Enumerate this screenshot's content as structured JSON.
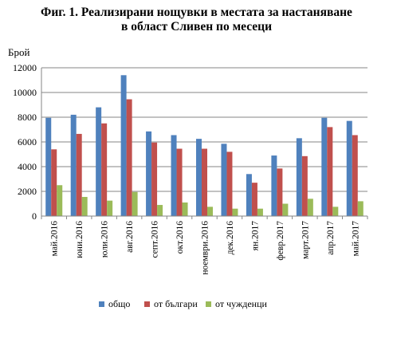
{
  "chart_data": {
    "type": "bar",
    "title": [
      "Фиг. 1. Реализирани нощувки в местата за настаняване",
      "в област Сливен по месеци"
    ],
    "ylabel": "Брой",
    "xlabel": "",
    "ylim": [
      0,
      12000
    ],
    "yticks": [
      0,
      2000,
      4000,
      6000,
      8000,
      10000,
      12000
    ],
    "grid": true,
    "legend_position": "bottom",
    "categories": [
      "май.2016",
      "юни.2016",
      "юли.2016",
      "авг.2016",
      "септ.2016",
      "окт.2016",
      "ноември.2016",
      "дек.2016",
      "ян.2017",
      "февр.2017",
      "март.2017",
      "апр.2017",
      "май.2017"
    ],
    "series": [
      {
        "name": "общо",
        "color": "#4f81bd",
        "values": [
          7950,
          8200,
          8800,
          11400,
          6850,
          6550,
          6250,
          5850,
          3400,
          4900,
          6300,
          7950,
          7700
        ]
      },
      {
        "name": "от българи",
        "color": "#c0504d",
        "values": [
          5400,
          6650,
          7500,
          9450,
          5950,
          5450,
          5450,
          5200,
          2700,
          3850,
          4850,
          7200,
          6550
        ]
      },
      {
        "name": "от чужденци",
        "color": "#9bbb59",
        "values": [
          2500,
          1550,
          1250,
          1950,
          900,
          1100,
          750,
          600,
          600,
          1000,
          1400,
          750,
          1200
        ]
      }
    ]
  }
}
